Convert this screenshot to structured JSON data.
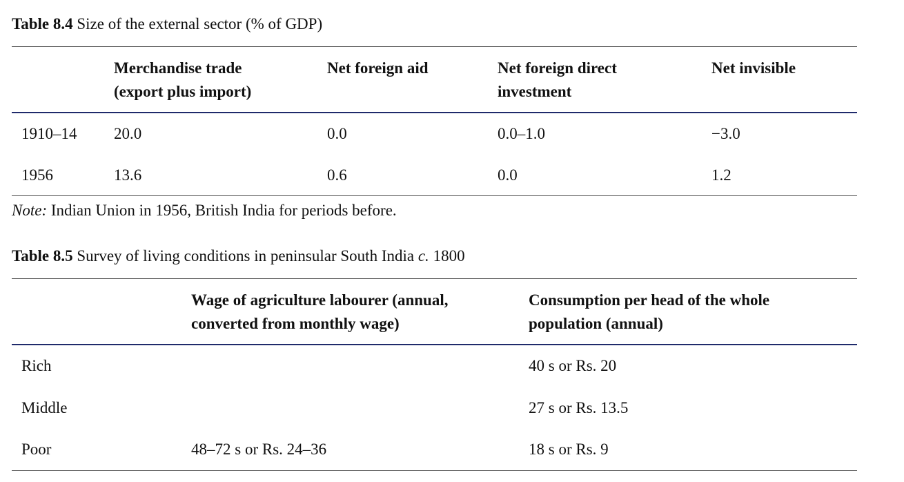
{
  "table1": {
    "label": "Table 8.4",
    "title": "Size of the external sector (% of GDP)",
    "headers": [
      "",
      [
        "Merchandise trade",
        "(export plus import)"
      ],
      [
        "Net foreign aid"
      ],
      [
        "Net foreign direct",
        "investment"
      ],
      [
        "Net invisible"
      ]
    ],
    "rows": [
      [
        "1910–14",
        "20.0",
        "0.0",
        "0.0–1.0",
        "−3.0"
      ],
      [
        "1956",
        "13.6",
        "0.6",
        "0.0",
        "1.2"
      ]
    ],
    "note_label": "Note:",
    "note_text": "Indian Union in 1956, British India for periods before."
  },
  "table2": {
    "label": "Table 8.5",
    "title_before": "Survey of living conditions in peninsular South India",
    "title_italic": "c.",
    "title_after": "1800",
    "headers": [
      "",
      [
        "Wage of agriculture labourer (annual,",
        "converted from monthly wage)"
      ],
      [
        "Consumption per head of the whole",
        "population (annual)"
      ]
    ],
    "rows": [
      [
        "Rich",
        "",
        "40 s or Rs. 20"
      ],
      [
        "Middle",
        "",
        "27 s or Rs. 13.5"
      ],
      [
        "Poor",
        "48–72 s or Rs. 24–36",
        "18 s or Rs. 9"
      ]
    ]
  }
}
